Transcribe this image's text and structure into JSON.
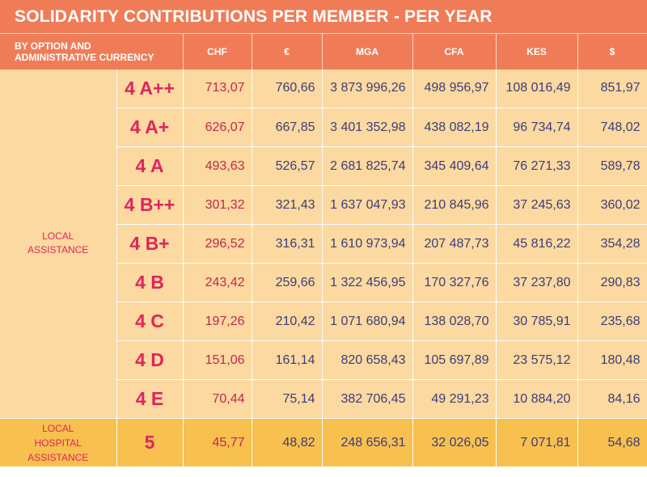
{
  "title": "SOLIDARITY CONTRIBUTIONS PER MEMBER - PER YEAR",
  "header": {
    "corner_line1": "BY OPTION AND",
    "corner_line2": "ADMINISTRATIVE CURRENCY",
    "currencies": [
      "CHF",
      "€",
      "MGA",
      "CFA",
      "KES",
      "$"
    ]
  },
  "groups": {
    "local_line1": "LOCAL",
    "local_line2": "ASSISTANCE",
    "hospital_line1": "LOCAL",
    "hospital_line2": "HOSPITAL",
    "hospital_line3": "ASSISTANCE"
  },
  "rows": [
    {
      "option": "4 A++",
      "values": [
        "713,07",
        "760,66",
        "3 873 996,26",
        "498 956,97",
        "108 016,49",
        "851,97"
      ]
    },
    {
      "option": "4 A+",
      "values": [
        "626,07",
        "667,85",
        "3 401 352,98",
        "438 082,19",
        "96 734,74",
        "748,02"
      ]
    },
    {
      "option": "4 A",
      "values": [
        "493,63",
        "526,57",
        "2 681 825,74",
        "345 409,64",
        "76 271,33",
        "589,78"
      ]
    },
    {
      "option": "4 B++",
      "values": [
        "301,32",
        "321,43",
        "1 637 047,93",
        "210 845,96",
        "37 245,63",
        "360,02"
      ]
    },
    {
      "option": "4 B+",
      "values": [
        "296,52",
        "316,31",
        "1 610 973,94",
        "207 487,73",
        "45 816,22",
        "354,28"
      ]
    },
    {
      "option": "4 B",
      "values": [
        "243,42",
        "259,66",
        "1 322 456,95",
        "170 327,76",
        "37 237,80",
        "290,83"
      ]
    },
    {
      "option": "4 C",
      "values": [
        "197,26",
        "210,42",
        "1 071 680,94",
        "138 028,70",
        "30 785,91",
        "235,68"
      ]
    },
    {
      "option": "4 D",
      "values": [
        "151,06",
        "161,14",
        "820 658,43",
        "105 697,89",
        "23 575,12",
        "180,48"
      ]
    },
    {
      "option": "4 E",
      "values": [
        "70,44",
        "75,14",
        "382 706,45",
        "49 291,23",
        "10 884,20",
        "84,16"
      ]
    },
    {
      "option": "5",
      "values": [
        "45,77",
        "48,82",
        "248 656,31",
        "32 026,05",
        "7 071,81",
        "54,68"
      ]
    }
  ]
}
